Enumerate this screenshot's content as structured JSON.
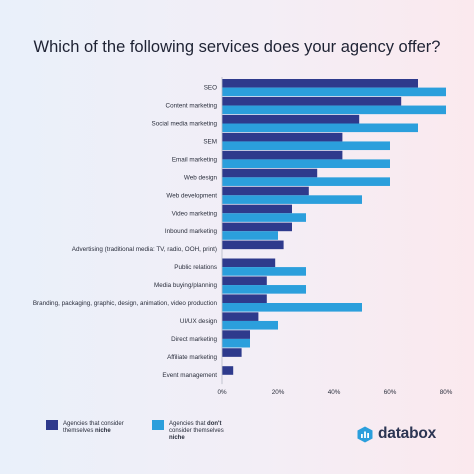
{
  "chart_data": {
    "type": "bar",
    "orientation": "horizontal",
    "title": "Which of the following services does your agency offer?",
    "categories": [
      "SEO",
      "Content marketing",
      "Social media marketing",
      "SEM",
      "Email marketing",
      "Web design",
      "Web development",
      "Video marketing",
      "Inbound marketing",
      "Advertising (traditional media: TV, radio, OOH, print)",
      "Public relations",
      "Media buying/planning",
      "Branding, packaging, graphic, design, animation, video production",
      "UI/UX design",
      "Direct marketing",
      "Affiliate marketing",
      "Event management"
    ],
    "series": [
      {
        "name": "Agencies that consider themselves niche",
        "color": "#2e3a8c",
        "values": [
          70,
          64,
          49,
          43,
          43,
          34,
          31,
          25,
          25,
          22,
          19,
          16,
          16,
          13,
          10,
          7,
          4
        ]
      },
      {
        "name": "Agencies that don't consider themselves niche",
        "color": "#2b9fdc",
        "values": [
          80,
          80,
          70,
          60,
          60,
          60,
          50,
          30,
          20,
          0,
          30,
          30,
          50,
          20,
          10,
          0,
          0
        ]
      }
    ],
    "x_ticks": [
      "0%",
      "20%",
      "40%",
      "60%",
      "80%"
    ],
    "xlim": [
      0,
      80
    ],
    "grid": false,
    "legend_position": "bottom-left"
  },
  "legend": {
    "niche": {
      "prefix": "Agencies that consider themselves ",
      "bold": "niche"
    },
    "not_niche": {
      "prefix": "Agencies that ",
      "bold_dont": "don't",
      "mid": " consider themselves ",
      "bold": "niche"
    }
  },
  "brand": {
    "name": "databox",
    "icon": "databox-logo-icon"
  }
}
